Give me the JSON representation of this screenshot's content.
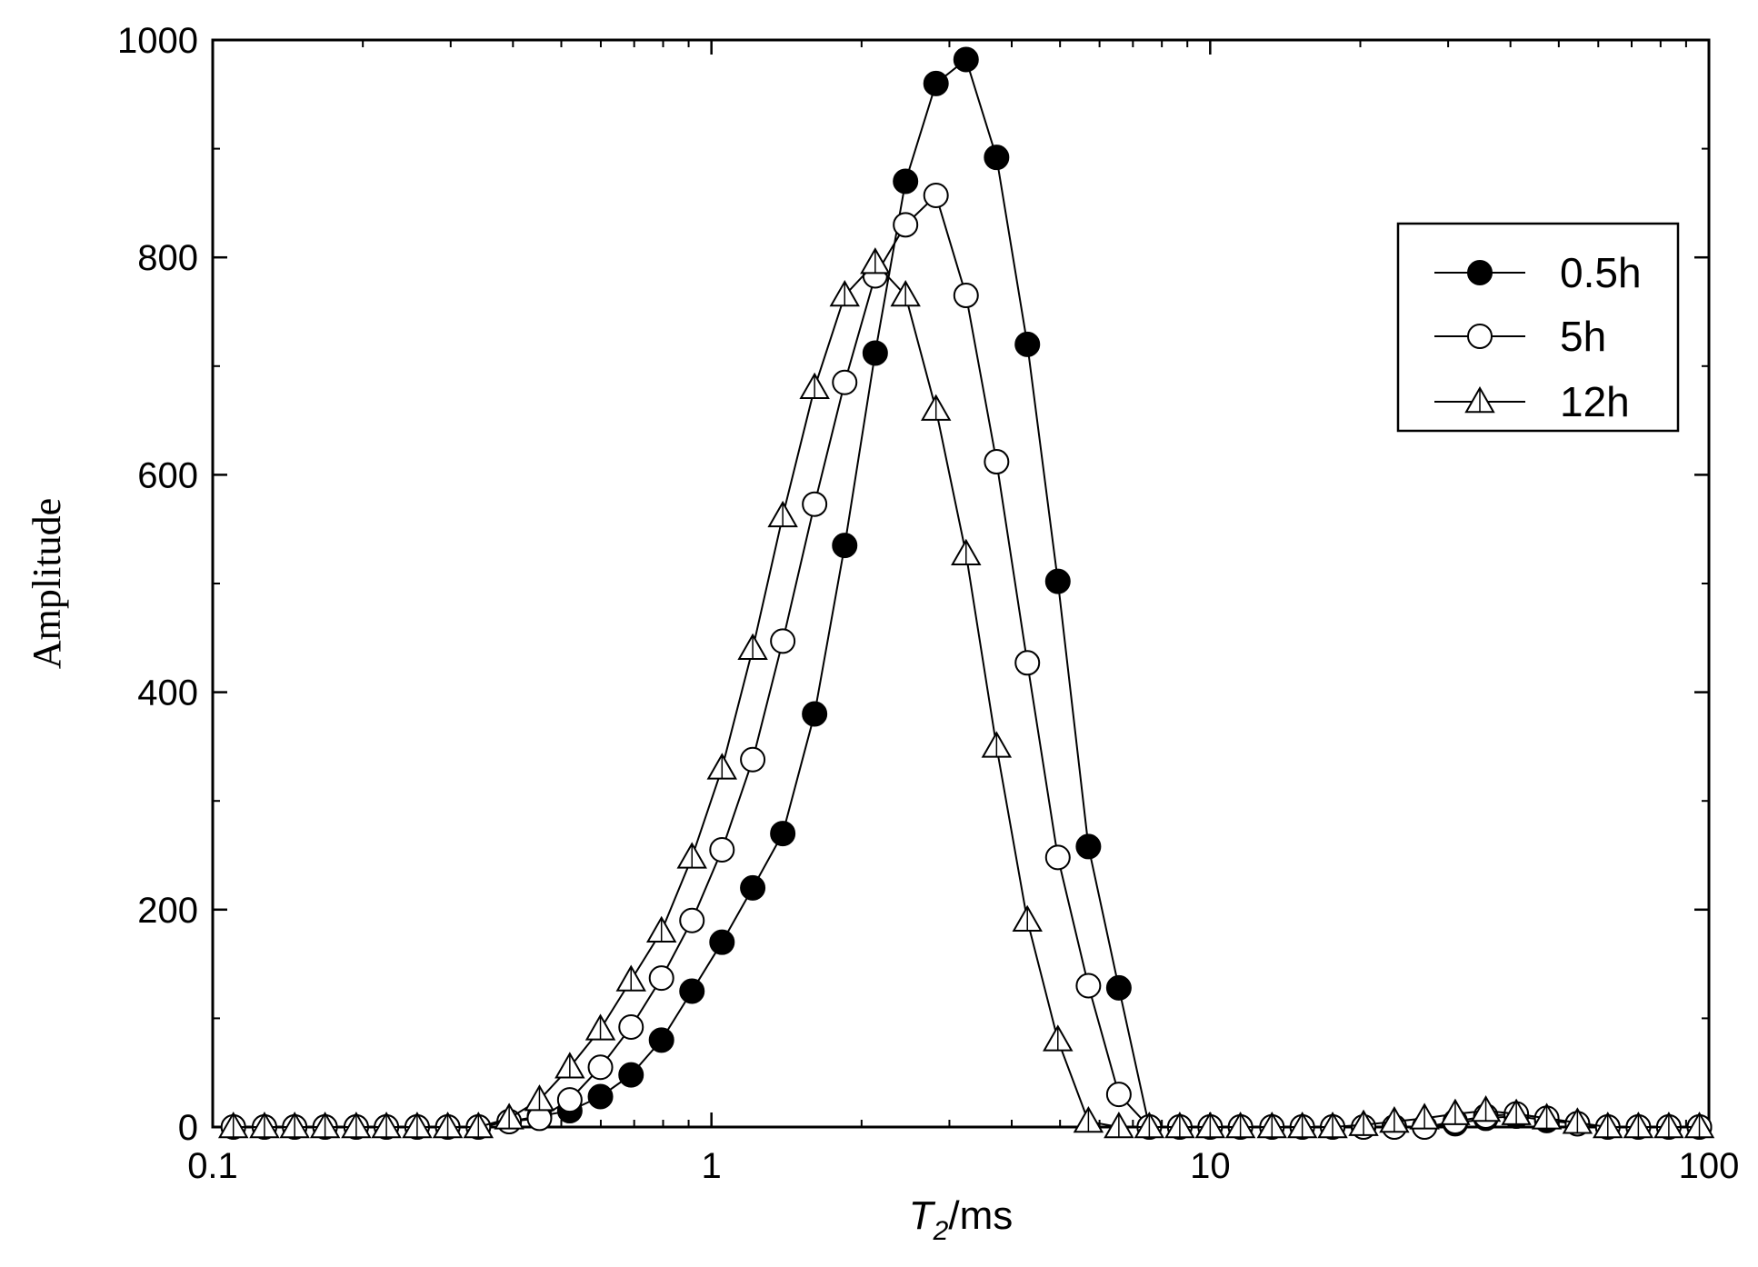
{
  "chart_data": {
    "type": "line",
    "title": "",
    "xlabel_main": "T",
    "xlabel_sub": "2",
    "xlabel_unit": "/ms",
    "ylabel": "Amplitude",
    "xscale": "log",
    "xlim": [
      0.1,
      100
    ],
    "ylim": [
      0,
      1000
    ],
    "xticks": [
      "0.1",
      "1",
      "10",
      "100"
    ],
    "yticks": [
      "0",
      "200",
      "400",
      "600",
      "800",
      "1000"
    ],
    "grid": false,
    "legend": "top-right",
    "series": [
      {
        "name": "0.5h",
        "marker": "filled-circle",
        "x": [
          0.11,
          0.127,
          0.146,
          0.168,
          0.194,
          0.223,
          0.257,
          0.296,
          0.341,
          0.393,
          0.452,
          0.52,
          0.599,
          0.69,
          0.794,
          0.914,
          1.05,
          1.21,
          1.39,
          1.61,
          1.85,
          2.13,
          2.45,
          2.82,
          3.24,
          3.73,
          4.3,
          4.95,
          5.7,
          6.56,
          7.55,
          8.69,
          10.0,
          11.5,
          13.3,
          15.3,
          17.6,
          20.3,
          23.4,
          26.9,
          31.0,
          35.7,
          41.1,
          47.3,
          54.5,
          62.7,
          72.2,
          83.1,
          95.7
        ],
        "y": [
          0,
          0,
          0,
          0,
          0,
          0,
          0,
          0,
          0,
          5,
          10,
          15,
          28,
          48,
          80,
          125,
          170,
          220,
          270,
          380,
          535,
          712,
          870,
          960,
          982,
          892,
          720,
          502,
          258,
          128,
          0,
          0,
          0,
          0,
          0,
          0,
          0,
          0,
          0,
          0,
          3,
          8,
          10,
          6,
          3,
          0,
          0,
          0,
          0
        ]
      },
      {
        "name": "5h",
        "marker": "open-circle",
        "x": [
          0.11,
          0.127,
          0.146,
          0.168,
          0.194,
          0.223,
          0.257,
          0.296,
          0.341,
          0.393,
          0.452,
          0.52,
          0.599,
          0.69,
          0.794,
          0.914,
          1.05,
          1.21,
          1.39,
          1.61,
          1.85,
          2.13,
          2.45,
          2.82,
          3.24,
          3.73,
          4.3,
          4.95,
          5.7,
          6.56,
          7.55,
          8.69,
          10.0,
          11.5,
          13.3,
          15.3,
          17.6,
          20.3,
          23.4,
          26.9,
          31.0,
          35.7,
          41.1,
          47.3,
          54.5,
          62.7,
          72.2,
          83.1,
          95.7
        ],
        "y": [
          0,
          0,
          0,
          0,
          0,
          0,
          0,
          0,
          0,
          5,
          8,
          25,
          55,
          92,
          137,
          190,
          255,
          338,
          447,
          573,
          685,
          783,
          830,
          857,
          765,
          612,
          427,
          248,
          130,
          30,
          0,
          0,
          0,
          0,
          0,
          0,
          0,
          0,
          0,
          0,
          5,
          10,
          12,
          8,
          3,
          0,
          0,
          0,
          0
        ]
      },
      {
        "name": "12h",
        "marker": "open-triangle",
        "x": [
          0.11,
          0.127,
          0.146,
          0.168,
          0.194,
          0.223,
          0.257,
          0.296,
          0.341,
          0.393,
          0.452,
          0.52,
          0.599,
          0.69,
          0.794,
          0.914,
          1.05,
          1.21,
          1.39,
          1.61,
          1.85,
          2.13,
          2.45,
          2.82,
          3.24,
          3.73,
          4.3,
          4.95,
          5.7,
          6.56,
          7.55,
          8.69,
          10.0,
          11.5,
          13.3,
          15.3,
          17.6,
          20.3,
          23.4,
          26.9,
          31.0,
          35.7,
          41.1,
          47.3,
          54.5,
          62.7,
          72.2,
          83.1,
          95.7
        ],
        "y": [
          0,
          0,
          0,
          0,
          0,
          0,
          0,
          0,
          0,
          8,
          25,
          55,
          90,
          135,
          180,
          248,
          330,
          440,
          562,
          680,
          765,
          795,
          765,
          660,
          527,
          350,
          190,
          80,
          5,
          0,
          0,
          0,
          0,
          0,
          0,
          0,
          0,
          2,
          5,
          8,
          12,
          15,
          12,
          8,
          4,
          0,
          0,
          0,
          0
        ]
      }
    ]
  }
}
